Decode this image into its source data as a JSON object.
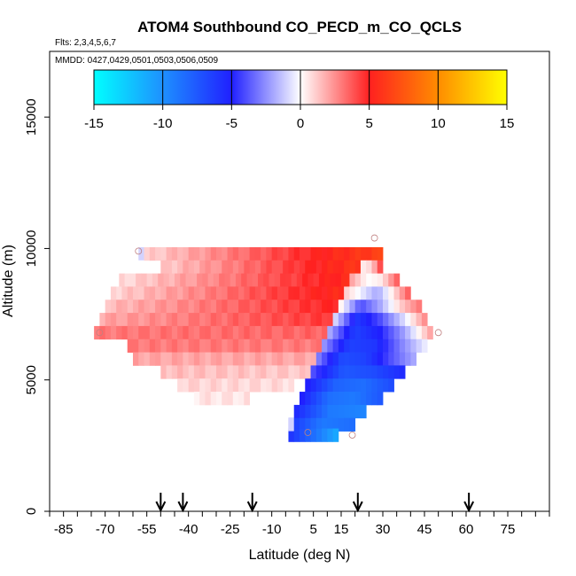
{
  "chart_data": {
    "type": "heatmap",
    "title": "ATOM4 Southbound CO_PECD_m_CO_QCLS",
    "subtitle_flights": "Flts: 2,3,4,5,6,7",
    "subtitle_dates": "MMDD: 0427,0429,0501,0503,0506,0509",
    "xlabel": "Latitude (deg N)",
    "ylabel": "Altitude (m)",
    "xlim": [
      -90,
      90
    ],
    "ylim": [
      0,
      17500
    ],
    "x_ticks": [
      -85,
      -70,
      -55,
      -40,
      -25,
      -10,
      5,
      15,
      30,
      45,
      60,
      75
    ],
    "x_tick_labels": [
      "-85",
      "-70",
      "-55",
      "-40",
      "-25",
      "-10",
      "5",
      "15",
      "30",
      "45",
      "60",
      "75"
    ],
    "y_ticks": [
      0,
      5000,
      10000,
      15000
    ],
    "y_tick_labels": [
      "0",
      "5000",
      "10000",
      "15000"
    ],
    "colorbar": {
      "min": -15,
      "max": 15,
      "ticks": [
        -15,
        -10,
        -5,
        0,
        5,
        10,
        15
      ],
      "tick_labels": [
        "-15",
        "-10",
        "-5",
        "0",
        "5",
        "10",
        "15"
      ],
      "colors": [
        {
          "v": -15,
          "c": "#00ffff"
        },
        {
          "v": -10,
          "c": "#1e90ff"
        },
        {
          "v": -5,
          "c": "#2020ff"
        },
        {
          "v": 0,
          "c": "#ffffff"
        },
        {
          "v": 5,
          "c": "#ff2020"
        },
        {
          "v": 10,
          "c": "#ff8c00"
        },
        {
          "v": 15,
          "c": "#ffff00"
        }
      ]
    },
    "arrows_lat": [
      -50,
      -42,
      -17,
      21,
      61
    ],
    "marker_circles": [
      {
        "lat": -58,
        "alt": 9900
      },
      {
        "lat": -72,
        "alt": 6800
      },
      {
        "lat": 27,
        "alt": 10400
      },
      {
        "lat": 50,
        "alt": 6800
      },
      {
        "lat": 3,
        "alt": 3000
      },
      {
        "lat": 19,
        "alt": 2900
      }
    ],
    "red_region_rows": [
      {
        "alt": 9800,
        "lat_start": -56,
        "lat_end": 30,
        "v_start": 1.0,
        "v_end": 6.5
      },
      {
        "alt": 9300,
        "lat_start": -50,
        "lat_end": 22,
        "v_start": 1.2,
        "v_end": 6.0
      },
      {
        "alt": 8800,
        "lat_start": -65,
        "lat_end": 18,
        "v_start": 0.8,
        "v_end": 5.5
      },
      {
        "alt": 8300,
        "lat_start": -68,
        "lat_end": 16,
        "v_start": 1.0,
        "v_end": 5.5
      },
      {
        "alt": 7800,
        "lat_start": -70,
        "lat_end": 14,
        "v_start": 1.5,
        "v_end": 5.0
      },
      {
        "alt": 7300,
        "lat_start": -72,
        "lat_end": 12,
        "v_start": 2.0,
        "v_end": 4.5
      },
      {
        "alt": 6800,
        "lat_start": -74,
        "lat_end": 10,
        "v_start": 3.0,
        "v_end": 3.5
      },
      {
        "alt": 6300,
        "lat_start": -62,
        "lat_end": 8,
        "v_start": 3.0,
        "v_end": 3.0
      },
      {
        "alt": 5800,
        "lat_start": -60,
        "lat_end": 6,
        "v_start": 2.0,
        "v_end": 2.0
      },
      {
        "alt": 5300,
        "lat_start": -50,
        "lat_end": 4,
        "v_start": 1.5,
        "v_end": 1.2
      },
      {
        "alt": 4800,
        "lat_start": -44,
        "lat_end": -2,
        "v_start": 1.0,
        "v_end": 0.8
      },
      {
        "alt": 4300,
        "lat_start": -38,
        "lat_end": -18,
        "v_start": 0.6,
        "v_end": 0.6
      }
    ],
    "band_rows": [
      {
        "alt": 9300,
        "lat_start": 22,
        "lat_end": 30,
        "values": [
          0.5,
          1.0,
          4.0
        ]
      },
      {
        "alt": 8800,
        "lat_start": 18,
        "lat_end": 36,
        "values": [
          2.0,
          0.0,
          0.5,
          3.5
        ]
      },
      {
        "alt": 8300,
        "lat_start": 16,
        "lat_end": 40,
        "values": [
          1.0,
          -0.5,
          -2.0,
          0.5,
          3.5
        ]
      },
      {
        "alt": 7800,
        "lat_start": 14,
        "lat_end": 44,
        "values": [
          0.2,
          -4.0,
          -2.0,
          1.0,
          3.0
        ]
      },
      {
        "alt": 7300,
        "lat_start": 12,
        "lat_end": 46,
        "values": [
          -1.0,
          -6.0,
          -4.0,
          -1.0,
          2.5
        ]
      },
      {
        "alt": 6800,
        "lat_start": 10,
        "lat_end": 48,
        "values": [
          -2.0,
          -6.5,
          -5.0,
          -2.0,
          2.0
        ]
      },
      {
        "alt": 6300,
        "lat_start": 8,
        "lat_end": 46,
        "values": [
          -2.5,
          -6.5,
          -6.0,
          -3.0,
          -0.5
        ]
      },
      {
        "alt": 5800,
        "lat_start": 6,
        "lat_end": 42,
        "values": [
          -3.0,
          -7.0,
          -6.5,
          -4.0,
          -2.0
        ]
      },
      {
        "alt": 5300,
        "lat_start": 4,
        "lat_end": 38,
        "values": [
          -4.0,
          -7.5,
          -7.0,
          -5.5
        ]
      },
      {
        "alt": 4800,
        "lat_start": 2,
        "lat_end": 34,
        "values": [
          -5.0,
          -8.0,
          -8.5,
          -7.0
        ]
      },
      {
        "alt": 4300,
        "lat_start": 0,
        "lat_end": 30,
        "values": [
          -5.0,
          -8.5,
          -9.0,
          -7.5
        ]
      },
      {
        "alt": 3800,
        "lat_start": -2,
        "lat_end": 24,
        "values": [
          -5.5,
          -9.0,
          -9.5
        ]
      },
      {
        "alt": 3300,
        "lat_start": -4,
        "lat_end": 20,
        "values": [
          -6.0,
          -9.0,
          -8.5
        ]
      },
      {
        "alt": 2900,
        "lat_start": -4,
        "lat_end": 14,
        "values": [
          -6.0,
          -11.0
        ]
      }
    ],
    "small_cells": [
      {
        "lat": -58,
        "alt": 9800,
        "v": -1.0
      },
      {
        "lat": -4,
        "alt": 3300,
        "v": -1.0
      }
    ]
  }
}
